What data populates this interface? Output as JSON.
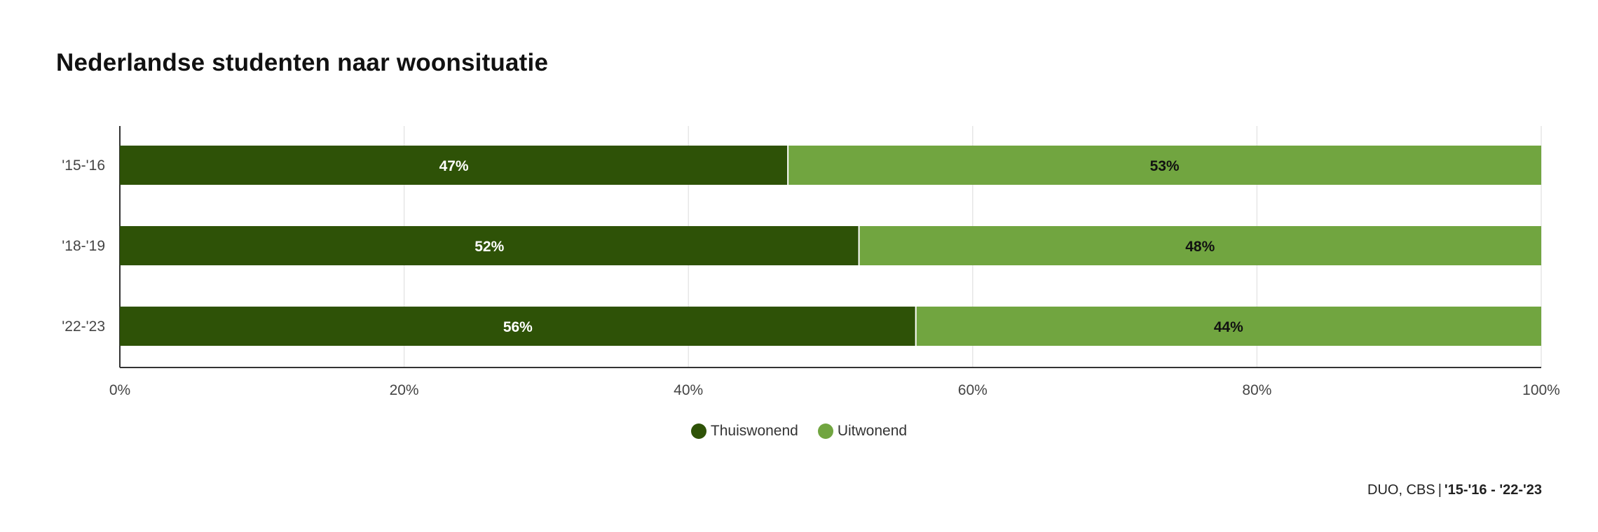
{
  "chart_data": {
    "type": "bar",
    "orientation": "horizontal",
    "stacked": true,
    "title": "Nederlandse studenten naar woonsituatie",
    "categories": [
      "'15-'16",
      "'18-'19",
      "'22-'23"
    ],
    "series": [
      {
        "name": "Thuiswonend",
        "values": [
          47,
          52,
          56
        ],
        "labels": [
          "47%",
          "52%",
          "56%"
        ],
        "color": "#2e5207",
        "label_color": "#ffffff"
      },
      {
        "name": "Uitwonend",
        "values": [
          53,
          48,
          44
        ],
        "labels": [
          "53%",
          "48%",
          "44%"
        ],
        "color": "#71a540",
        "label_color": "#111111"
      }
    ],
    "xlim": [
      0,
      100
    ],
    "xticks": [
      "0%",
      "20%",
      "40%",
      "60%",
      "80%",
      "100%"
    ],
    "grid": true,
    "legend_position": "bottom-center"
  },
  "source": {
    "text": "DUO, CBS",
    "separator": "|",
    "period": "'15-'16 - '22-'23"
  }
}
